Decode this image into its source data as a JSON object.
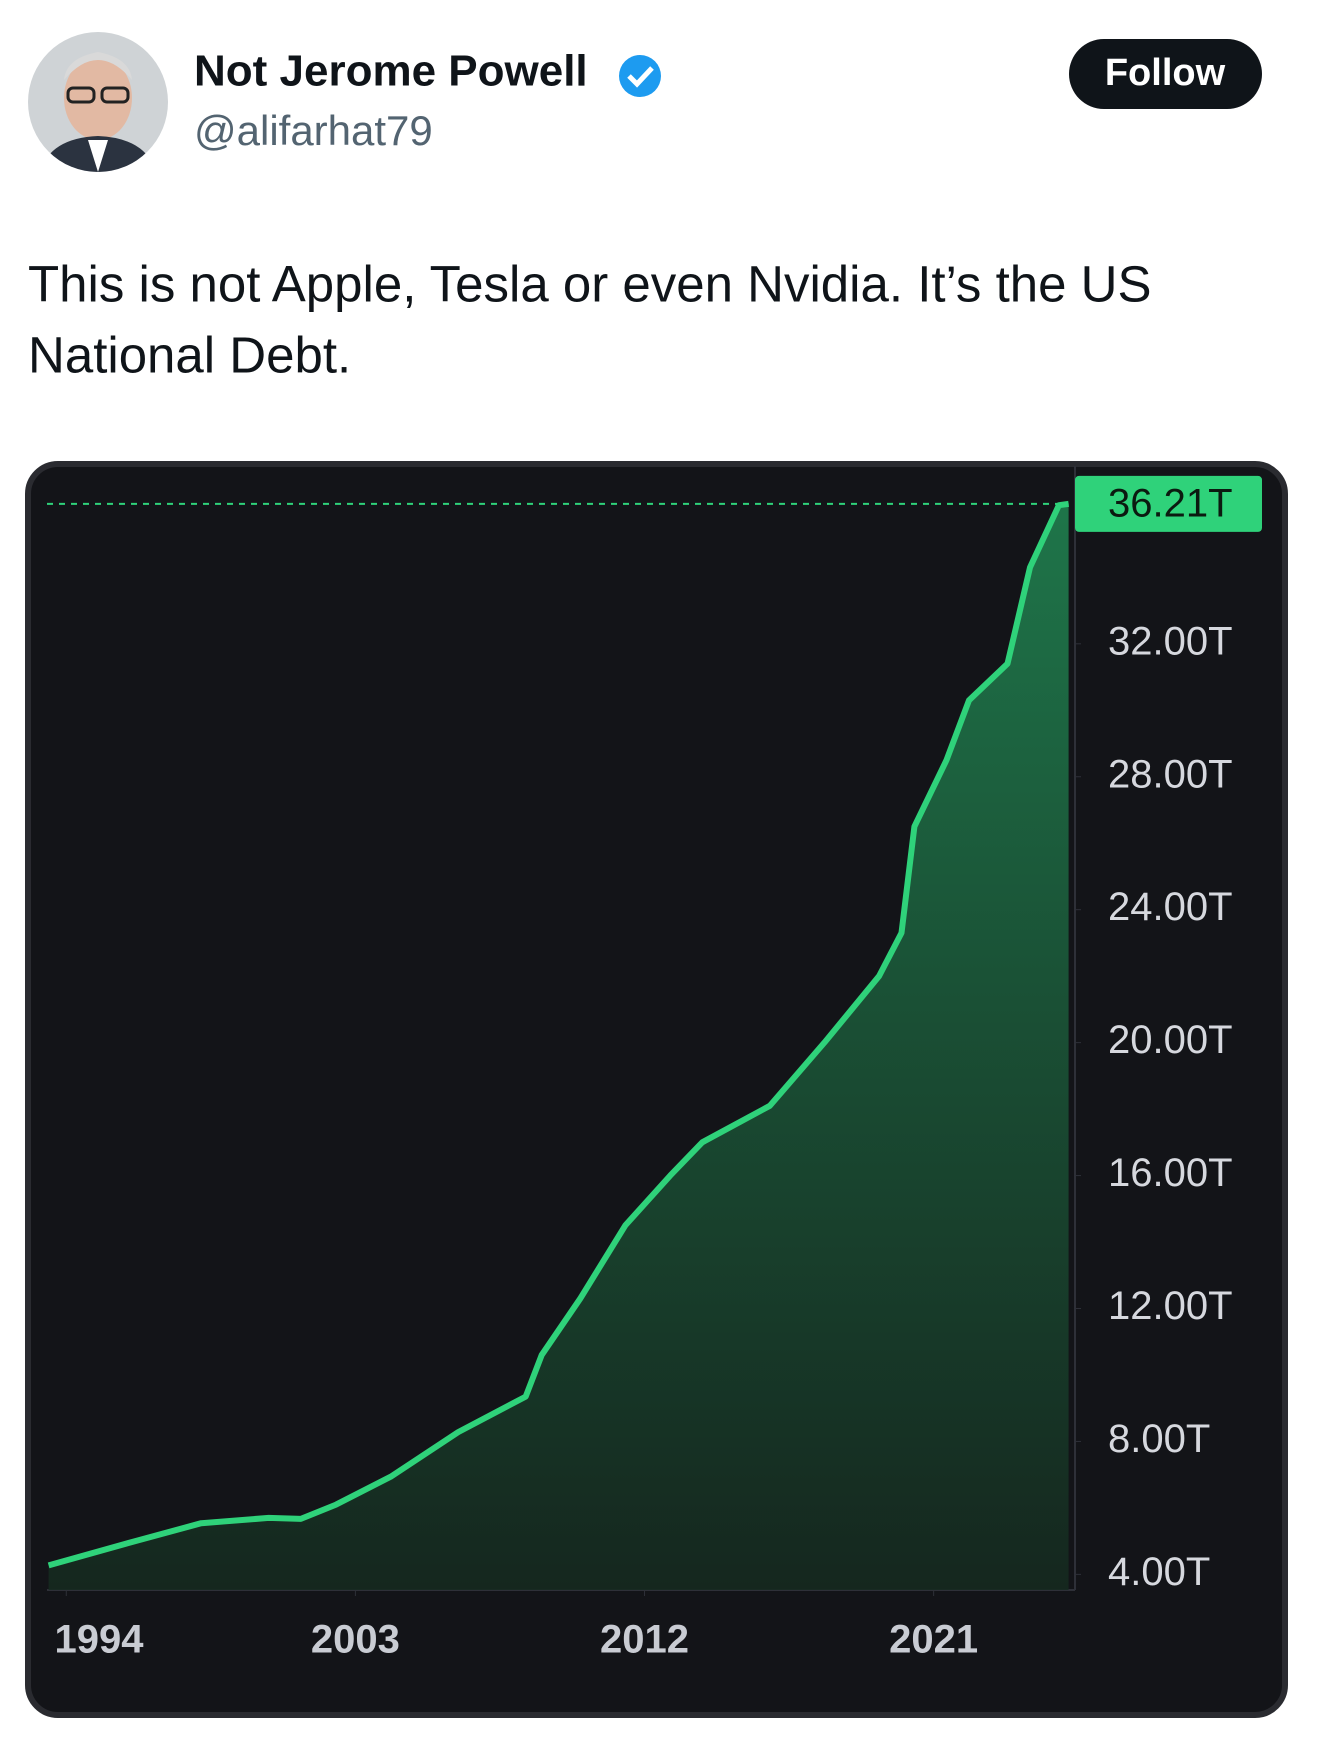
{
  "tweet": {
    "name": "Not Jerome Powell",
    "handle": "@alifarhat79",
    "follow": "Follow",
    "text": [
      "This is not Apple, Tesla or even Nvidia. It’s the US",
      "National Debt."
    ]
  },
  "chart_data": {
    "type": "line",
    "color": "#2fd27a",
    "x": [
      1993.45,
      1996.15,
      1998.2,
      2000.3,
      2001.3,
      2002.4,
      2004.1,
      2006.2,
      2008.3,
      2008.8,
      2010.0,
      2011.4,
      2012.8,
      2013.8,
      2015.9,
      2017.6,
      2019.3,
      2020.0,
      2020.4,
      2021.4,
      2022.1,
      2023.3,
      2024.0,
      2024.9,
      2025.2
    ],
    "values": [
      4.27,
      5.0,
      5.54,
      5.7,
      5.67,
      6.1,
      6.94,
      8.28,
      9.35,
      10.6,
      12.3,
      14.5,
      16.0,
      17.0,
      18.1,
      20.0,
      22.0,
      23.3,
      26.5,
      28.5,
      30.3,
      31.4,
      34.3,
      36.17,
      36.21
    ],
    "value_labels": [
      null,
      null,
      null,
      null,
      null,
      null,
      null,
      null,
      null,
      null,
      null,
      null,
      null,
      null,
      null,
      null,
      null,
      null,
      null,
      null,
      null,
      null,
      null,
      null,
      "36.21T"
    ],
    "xlim": [
      1993.4,
      2025.4
    ],
    "xticks": [
      1994,
      2003,
      2012,
      2021
    ],
    "ylim": [
      3.53,
      37.35
    ],
    "yticks": [
      {
        "value": 4,
        "label": "4.00T"
      },
      {
        "value": 8,
        "label": "8.00T"
      },
      {
        "value": 12,
        "label": "12.00T"
      },
      {
        "value": 16,
        "label": "16.00T"
      },
      {
        "value": 20,
        "label": "20.00T"
      },
      {
        "value": 24,
        "label": "24.00T"
      },
      {
        "value": 28,
        "label": "28.00T"
      },
      {
        "value": 32,
        "label": "32.00T"
      }
    ],
    "grid": false
  }
}
